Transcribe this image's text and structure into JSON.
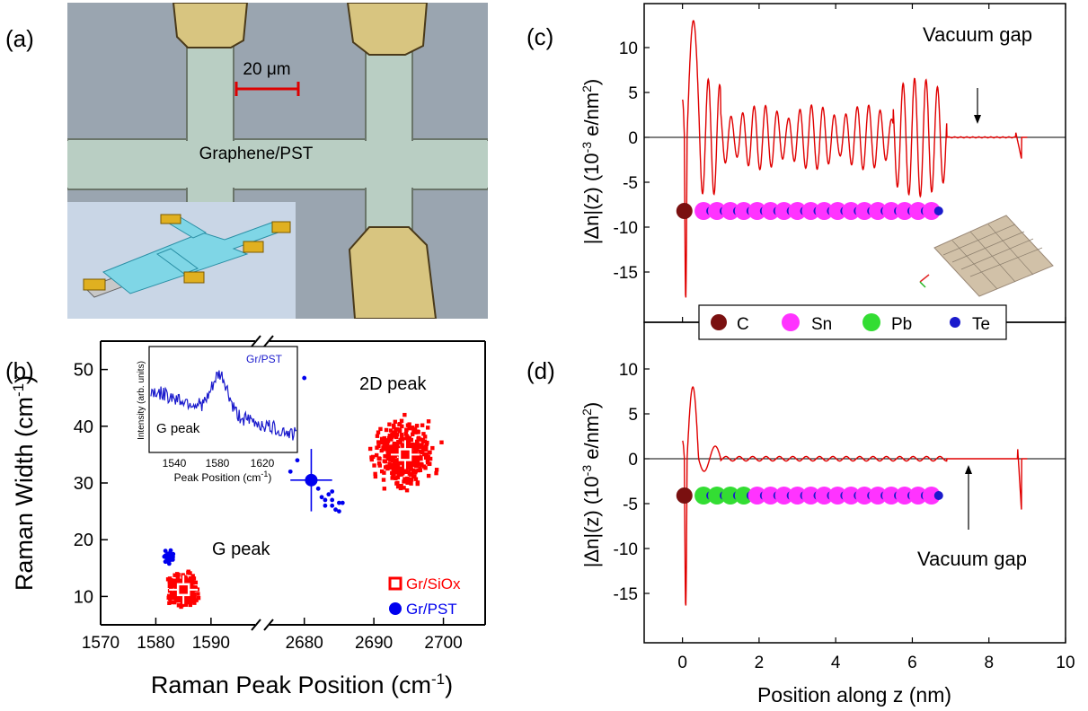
{
  "panels": {
    "a": {
      "label": "(a)",
      "scale_label": "20 μm",
      "sample_label": "Graphene/PST"
    },
    "b": {
      "label": "(b)"
    },
    "c": {
      "label": "(c)"
    },
    "d": {
      "label": "(d)"
    }
  },
  "colors": {
    "gr_siox": "#ff0000",
    "gr_pst": "#0000ee",
    "curve": "#e00000",
    "atom_C": "#7a1010",
    "atom_Sn": "#ff33ff",
    "atom_Pb": "#33dd33",
    "atom_Te": "#1a1acc"
  },
  "chart_data": [
    {
      "type": "scatter",
      "panel": "b",
      "xlabel": "Raman Peak Position (cm-1)",
      "ylabel": "Raman Width (cm-1)",
      "axis_break": true,
      "x_segments": [
        [
          1570,
          1598
        ],
        [
          2675,
          2706
        ]
      ],
      "ylim": [
        5,
        55
      ],
      "xticks_left": [
        "1570",
        "1580",
        "1590"
      ],
      "xticks_right": [
        "2680",
        "2690",
        "2700"
      ],
      "yticks": [
        "10",
        "20",
        "30",
        "40",
        "50"
      ],
      "annotations": [
        "G peak",
        "2D peak"
      ],
      "series": [
        {
          "name": "Gr/SiOx",
          "center_G": [
            1585.0,
            11.2
          ],
          "center_2D": [
            2694.5,
            35.0
          ]
        },
        {
          "name": "Gr/PST",
          "center_G": [
            1582.5,
            17.0
          ],
          "center_2D": [
            2681.0,
            30.5
          ],
          "error_2D": {
            "x": 3.0,
            "y": 5.5
          }
        }
      ],
      "inset": {
        "title": "Gr/PST",
        "xlabel": "Peak Position (cm-1)",
        "ylabel": "Intensity (arb. units)",
        "xticks": [
          "1540",
          "1580",
          "1620"
        ],
        "annotation": "G peak",
        "peak_center": 1582
      }
    },
    {
      "type": "line",
      "panel": "c",
      "ylabel": "|Δn|(z) (10-3 e/nm2)",
      "xlim": [
        -1,
        10
      ],
      "ylim": [
        -20,
        14
      ],
      "yticks": [
        "10",
        "5",
        "0",
        "-5",
        "-10",
        "-15"
      ],
      "annotation": "Vacuum gap",
      "legend": [
        "C",
        "Sn",
        "Pb",
        "Te"
      ]
    },
    {
      "type": "line",
      "panel": "d",
      "xlabel": "Position along z (nm)",
      "ylabel": "|Δn|(z) (10-3 e/nm2)",
      "xlim": [
        -1,
        10
      ],
      "ylim": [
        -20,
        14
      ],
      "xticks": [
        "0",
        "2",
        "4",
        "6",
        "8",
        "10"
      ],
      "yticks": [
        "10",
        "5",
        "0",
        "-5",
        "-10",
        "-15"
      ],
      "annotation": "Vacuum gap"
    }
  ]
}
